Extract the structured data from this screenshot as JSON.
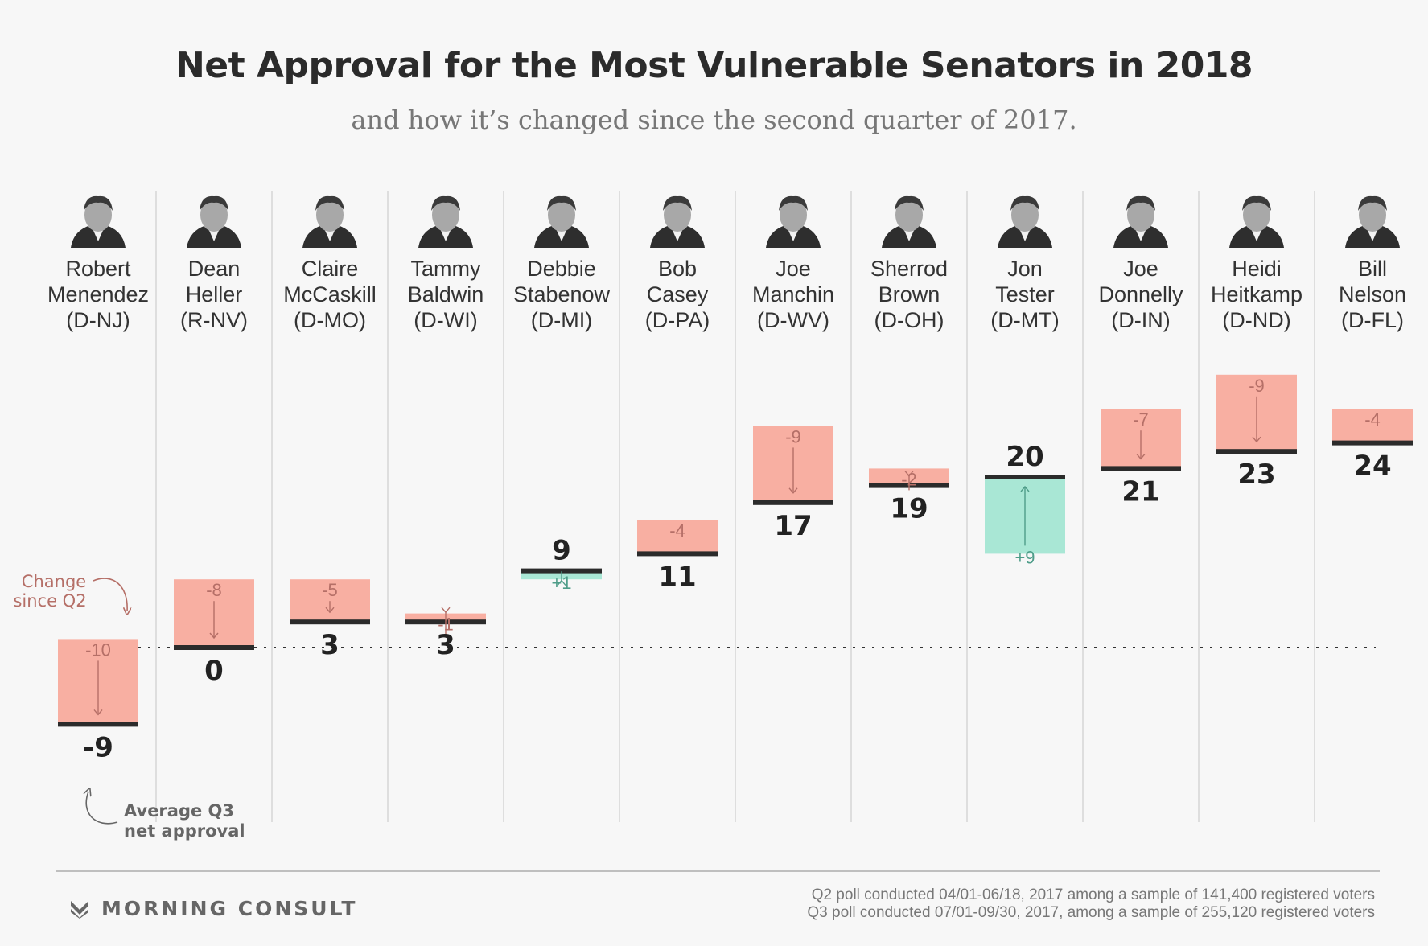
{
  "title": "Net Approval for the Most Vulnerable Senators in 2018",
  "subtitle": "and how it’s changed since the second quarter of 2017.",
  "annotations": {
    "change_line1": "Change",
    "change_line2": "since Q2",
    "avg_line1": "Average Q3",
    "avg_line2": "net approval"
  },
  "colors": {
    "decrease": "#f8afa2",
    "increase": "#a9e7d5",
    "decrease_text": "#b56f67",
    "increase_text": "#4f9d89",
    "bar_line": "#2b2b2b",
    "divider": "#d6d6d6",
    "background": "#f7f7f7"
  },
  "chart_data": {
    "type": "bar",
    "average_q3_net_approval": 0,
    "senators": [
      {
        "first": "Robert",
        "last": "Menendez",
        "party": "(D-NJ)",
        "q3": -9,
        "change": -10,
        "change_label": "-10"
      },
      {
        "first": "Dean",
        "last": "Heller",
        "party": "(R-NV)",
        "q3": 0,
        "change": -8,
        "change_label": "-8"
      },
      {
        "first": "Claire",
        "last": "McCaskill",
        "party": "(D-MO)",
        "q3": 3,
        "change": -5,
        "change_label": "-5"
      },
      {
        "first": "Tammy",
        "last": "Baldwin",
        "party": "(D-WI)",
        "q3": 3,
        "change": -1,
        "change_label": "-1"
      },
      {
        "first": "Debbie",
        "last": "Stabenow",
        "party": "(D-MI)",
        "q3": 9,
        "change": 1,
        "change_label": "+1"
      },
      {
        "first": "Bob",
        "last": "Casey",
        "party": "(D-PA)",
        "q3": 11,
        "change": -4,
        "change_label": "-4"
      },
      {
        "first": "Joe",
        "last": "Manchin",
        "party": "(D-WV)",
        "q3": 17,
        "change": -9,
        "change_label": "-9"
      },
      {
        "first": "Sherrod",
        "last": "Brown",
        "party": "(D-OH)",
        "q3": 19,
        "change": -2,
        "change_label": "-2"
      },
      {
        "first": "Jon",
        "last": "Tester",
        "party": "(D-MT)",
        "q3": 20,
        "change": 9,
        "change_label": "+9"
      },
      {
        "first": "Joe",
        "last": "Donnelly",
        "party": "(D-IN)",
        "q3": 21,
        "change": -7,
        "change_label": "-7"
      },
      {
        "first": "Heidi",
        "last": "Heitkamp",
        "party": "(D-ND)",
        "q3": 23,
        "change": -9,
        "change_label": "-9"
      },
      {
        "first": "Bill",
        "last": "Nelson",
        "party": "(D-FL)",
        "q3": 24,
        "change": -4,
        "change_label": "-4"
      }
    ]
  },
  "footer": {
    "brand": "MORNING CONSULT",
    "q2_note": "Q2 poll conducted 04/01-06/18, 2017 among a sample of 141,400 registered voters",
    "q3_note": "Q3 poll conducted  07/01-09/30, 2017, among a sample of 255,120 registered voters"
  }
}
